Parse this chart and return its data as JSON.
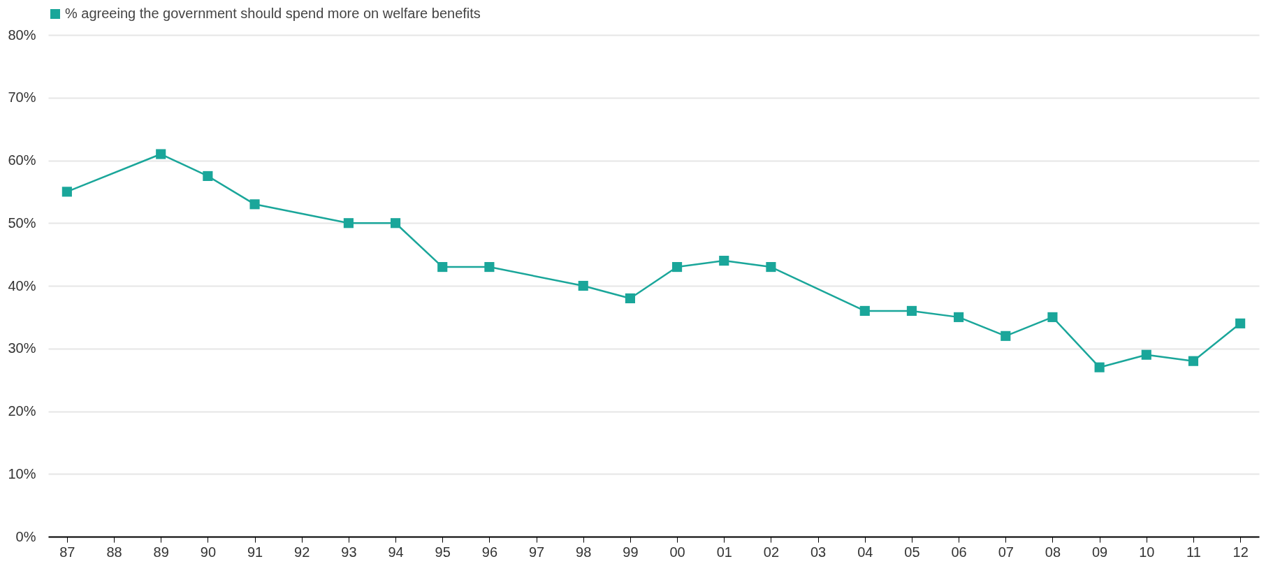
{
  "chart_data": {
    "type": "line",
    "categories": [
      "87",
      "88",
      "89",
      "90",
      "91",
      "92",
      "93",
      "94",
      "95",
      "96",
      "97",
      "98",
      "99",
      "00",
      "01",
      "02",
      "03",
      "04",
      "05",
      "06",
      "07",
      "08",
      "09",
      "10",
      "11",
      "12"
    ],
    "series": [
      {
        "name": "% agreeing the government should spend more on welfare benefits",
        "color": "#1aa69a",
        "values": [
          55,
          null,
          61,
          57.5,
          53,
          null,
          50,
          50,
          43,
          43,
          null,
          40,
          38,
          43,
          44,
          43,
          null,
          36,
          36,
          35,
          32,
          35,
          27,
          29,
          28,
          34
        ]
      }
    ],
    "ylim": [
      0,
      80
    ],
    "yticks": [
      {
        "value": 0,
        "label": "0%"
      },
      {
        "value": 10,
        "label": "10%"
      },
      {
        "value": 20,
        "label": "20%"
      },
      {
        "value": 30,
        "label": "30%"
      },
      {
        "value": 40,
        "label": "40%"
      },
      {
        "value": 50,
        "label": "50%"
      },
      {
        "value": 60,
        "label": "60%"
      },
      {
        "value": 70,
        "label": "70%"
      },
      {
        "value": 80,
        "label": "80%"
      }
    ],
    "grid": "y",
    "legend": "top left",
    "marker": "square",
    "line_style": "solid"
  }
}
